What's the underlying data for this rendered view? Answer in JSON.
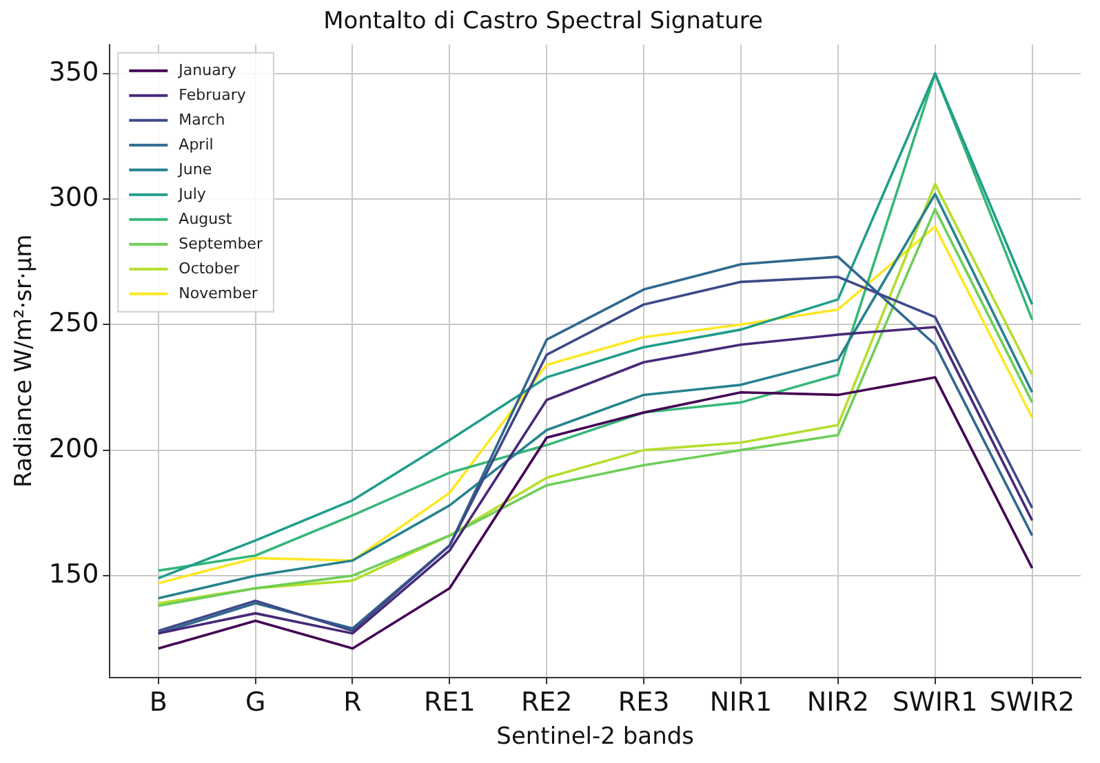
{
  "chart_data": {
    "type": "line",
    "title": "Montalto di Castro Spectral Signature",
    "xlabel": "Sentinel-2 bands",
    "ylabel": "Radiance W/m²·sr·µm",
    "categories": [
      "B",
      "G",
      "R",
      "RE1",
      "RE2",
      "RE3",
      "NIR1",
      "NIR2",
      "SWIR1",
      "SWIR2"
    ],
    "series": [
      {
        "name": "January",
        "color": "#440154",
        "values": [
          121,
          132,
          121,
          145,
          205,
          215,
          223,
          222,
          229,
          153
        ]
      },
      {
        "name": "February",
        "color": "#482878",
        "values": [
          127,
          135,
          127,
          160,
          220,
          235,
          242,
          246,
          249,
          172
        ]
      },
      {
        "name": "March",
        "color": "#3e4989",
        "values": [
          128,
          140,
          128,
          162,
          238,
          258,
          267,
          269,
          253,
          177
        ]
      },
      {
        "name": "April",
        "color": "#31688e",
        "values": [
          127,
          139,
          129,
          162,
          244,
          264,
          274,
          277,
          242,
          166
        ]
      },
      {
        "name": "June",
        "color": "#26828e",
        "values": [
          141,
          150,
          156,
          178,
          208,
          222,
          226,
          236,
          302,
          223
        ]
      },
      {
        "name": "July",
        "color": "#1f9e89",
        "values": [
          149,
          164,
          180,
          204,
          229,
          241,
          248,
          260,
          350,
          258
        ]
      },
      {
        "name": "August",
        "color": "#35b779",
        "values": [
          152,
          158,
          174,
          191,
          202,
          215,
          219,
          230,
          350,
          252
        ]
      },
      {
        "name": "September",
        "color": "#6ece58",
        "values": [
          138,
          145,
          150,
          166,
          186,
          194,
          200,
          206,
          296,
          219
        ]
      },
      {
        "name": "October",
        "color": "#b5de2b",
        "values": [
          139,
          145,
          148,
          166,
          189,
          200,
          203,
          210,
          306,
          230
        ]
      },
      {
        "name": "November",
        "color": "#fde725",
        "values": [
          147,
          157,
          156,
          183,
          234,
          245,
          250,
          256,
          289,
          213
        ]
      }
    ],
    "ylim": [
      109.5,
      361.5
    ],
    "yticks": [
      150,
      200,
      250,
      300,
      350
    ],
    "grid": true,
    "legend": "top left",
    "marker": "none",
    "line_style": "solid"
  }
}
